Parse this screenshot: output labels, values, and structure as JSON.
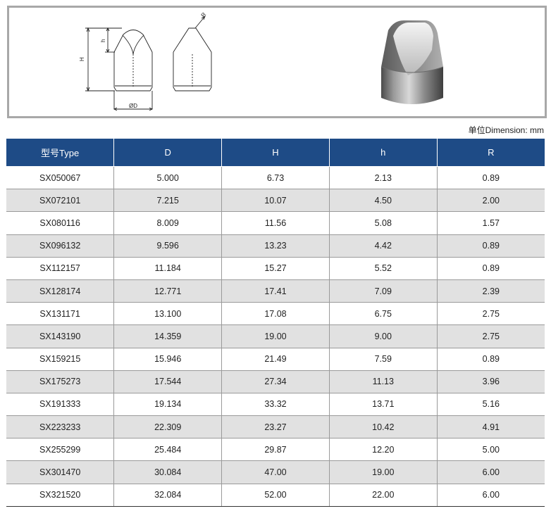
{
  "figure": {
    "labels": {
      "H": "H",
      "h": "h",
      "D": "ØD",
      "R": "R"
    },
    "photo": "cemented-carbide-button-photo"
  },
  "unit_note": "单位Dimension: mm",
  "table": {
    "headers": [
      "型号Type",
      "D",
      "H",
      "h",
      "R"
    ],
    "rows": [
      [
        "SX050067",
        "5.000",
        "6.73",
        "2.13",
        "0.89"
      ],
      [
        "SX072101",
        "7.215",
        "10.07",
        "4.50",
        "2.00"
      ],
      [
        "SX080116",
        "8.009",
        "11.56",
        "5.08",
        "1.57"
      ],
      [
        "SX096132",
        "9.596",
        "13.23",
        "4.42",
        "0.89"
      ],
      [
        "SX112157",
        "11.184",
        "15.27",
        "5.52",
        "0.89"
      ],
      [
        "SX128174",
        "12.771",
        "17.41",
        "7.09",
        "2.39"
      ],
      [
        "SX131171",
        "13.100",
        "17.08",
        "6.75",
        "2.75"
      ],
      [
        "SX143190",
        "14.359",
        "19.00",
        "9.00",
        "2.75"
      ],
      [
        "SX159215",
        "15.946",
        "21.49",
        "7.59",
        "0.89"
      ],
      [
        "SX175273",
        "17.544",
        "27.34",
        "11.13",
        "3.96"
      ],
      [
        "SX191333",
        "19.134",
        "33.32",
        "13.71",
        "5.16"
      ],
      [
        "SX223233",
        "22.309",
        "23.27",
        "10.42",
        "4.91"
      ],
      [
        "SX255299",
        "25.484",
        "29.87",
        "12.20",
        "5.00"
      ],
      [
        "SX301470",
        "30.084",
        "47.00",
        "19.00",
        "6.00"
      ],
      [
        "SX321520",
        "32.084",
        "52.00",
        "22.00",
        "6.00"
      ]
    ]
  }
}
